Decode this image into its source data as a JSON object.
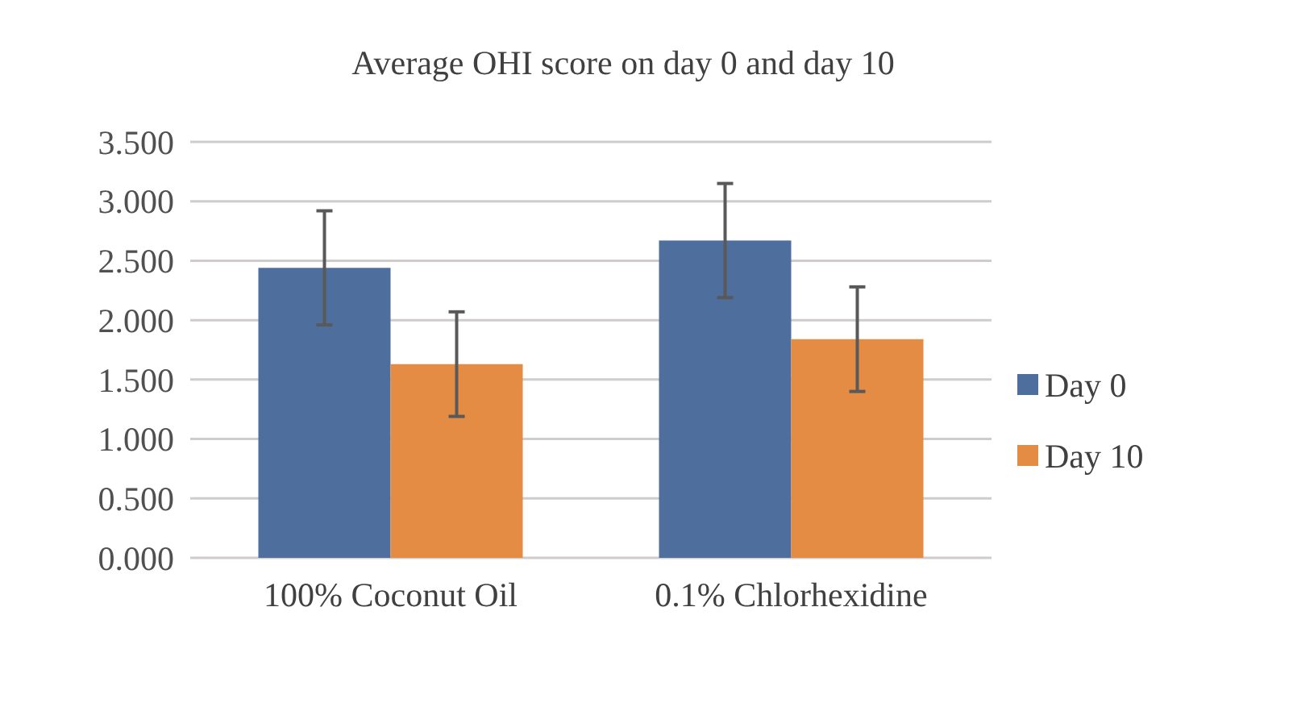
{
  "chart_data": {
    "type": "bar",
    "title": "Average OHI score on day 0 and day 10",
    "categories": [
      "100% Coconut Oil",
      "0.1% Chlorhexidine"
    ],
    "series": [
      {
        "name": "Day 0",
        "color": "#4e6e9e",
        "values": [
          2.44,
          2.67
        ],
        "errors": [
          0.48,
          0.48
        ]
      },
      {
        "name": "Day 10",
        "color": "#e58c44",
        "values": [
          1.63,
          1.84
        ],
        "errors": [
          0.44,
          0.44
        ]
      }
    ],
    "ylim": [
      0,
      3.5
    ],
    "yticks": [
      {
        "value": 0,
        "label": "0.000"
      },
      {
        "value": 0.5,
        "label": "0.500"
      },
      {
        "value": 1,
        "label": "1.000"
      },
      {
        "value": 1.5,
        "label": "1.500"
      },
      {
        "value": 2,
        "label": "2.000"
      },
      {
        "value": 2.5,
        "label": "2.500"
      },
      {
        "value": 3,
        "label": "3.000"
      },
      {
        "value": 3.5,
        "label": "3.500"
      }
    ],
    "grid": "y",
    "legend": "right"
  }
}
